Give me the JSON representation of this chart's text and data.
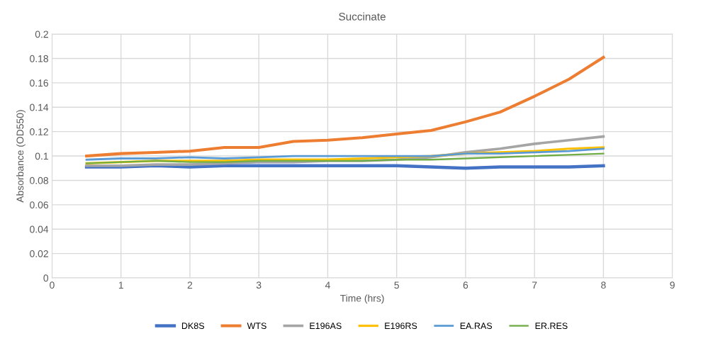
{
  "chart_data": {
    "type": "line",
    "title": "Succinate",
    "xlabel": "Time (hrs)",
    "ylabel": "Absorbance (OD550)",
    "x": [
      0.5,
      1,
      1.5,
      2,
      2.5,
      3,
      3.5,
      4,
      4.5,
      5,
      5.5,
      6,
      6.5,
      7,
      7.5,
      8
    ],
    "series": [
      {
        "name": "DK8S",
        "color": "#4472c4",
        "values": [
          0.091,
          0.091,
          0.092,
          0.091,
          0.092,
          0.092,
          0.092,
          0.092,
          0.092,
          0.092,
          0.091,
          0.09,
          0.091,
          0.091,
          0.091,
          0.092
        ]
      },
      {
        "name": "WTS",
        "color": "#ed7d31",
        "values": [
          0.1,
          0.102,
          0.103,
          0.104,
          0.107,
          0.107,
          0.112,
          0.113,
          0.115,
          0.118,
          0.121,
          0.128,
          0.136,
          0.149,
          0.163,
          0.181
        ]
      },
      {
        "name": "E196AS",
        "color": "#a5a5a5",
        "values": [
          0.092,
          0.092,
          0.093,
          0.093,
          0.094,
          0.095,
          0.095,
          0.096,
          0.096,
          0.097,
          0.099,
          0.103,
          0.106,
          0.11,
          0.113,
          0.116
        ]
      },
      {
        "name": "E196RS",
        "color": "#ffc000",
        "values": [
          0.094,
          0.095,
          0.096,
          0.096,
          0.096,
          0.097,
          0.097,
          0.097,
          0.098,
          0.099,
          0.1,
          0.102,
          0.103,
          0.104,
          0.106,
          0.107
        ]
      },
      {
        "name": "EA.RAS",
        "color": "#5b9bd5",
        "values": [
          0.097,
          0.098,
          0.098,
          0.099,
          0.098,
          0.099,
          0.1,
          0.1,
          0.1,
          0.1,
          0.1,
          0.102,
          0.102,
          0.103,
          0.104,
          0.106
        ]
      },
      {
        "name": "ER.RES",
        "color": "#70ad47",
        "values": [
          0.094,
          0.095,
          0.096,
          0.095,
          0.095,
          0.096,
          0.096,
          0.096,
          0.096,
          0.097,
          0.097,
          0.098,
          0.099,
          0.1,
          0.101,
          0.102
        ]
      }
    ],
    "xlim": [
      0,
      9
    ],
    "xticks": [
      0,
      1,
      2,
      3,
      4,
      5,
      6,
      7,
      8,
      9
    ],
    "ylim": [
      0,
      0.2
    ],
    "yticks": [
      0,
      0.02,
      0.04,
      0.06,
      0.08,
      0.1,
      0.12,
      0.14,
      0.16,
      0.18,
      0.2
    ],
    "grid": true,
    "legend": "bottom",
    "marker": "none",
    "line_style": "solid"
  }
}
